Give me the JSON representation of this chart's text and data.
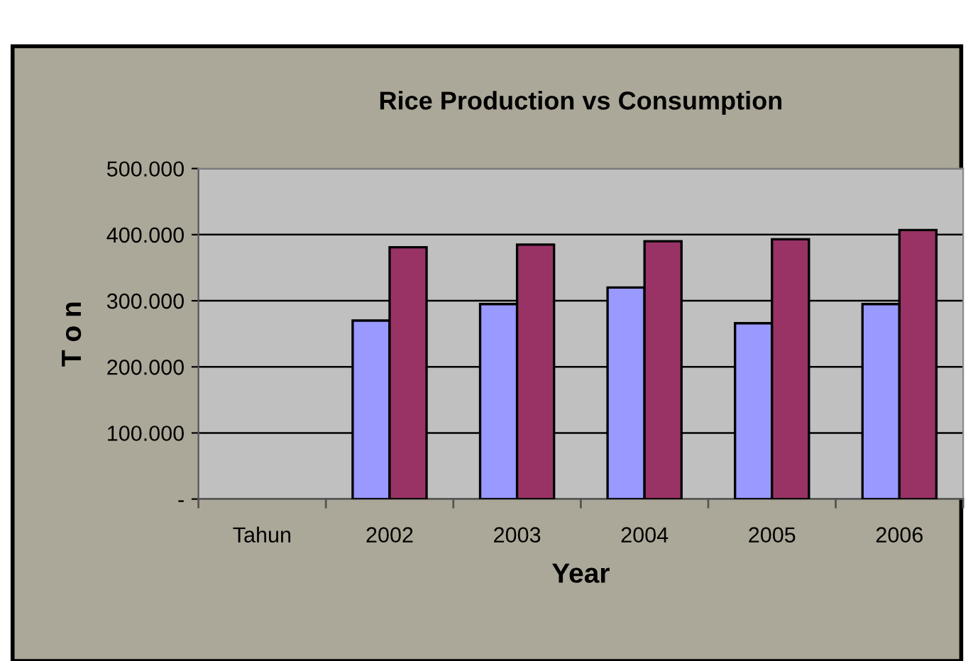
{
  "chart_data": {
    "type": "bar",
    "title": "Rice Production vs Consumption",
    "xlabel": "Year",
    "ylabel": "T o n",
    "categories": [
      "Tahun",
      "2002",
      "2003",
      "2004",
      "2005",
      "2006"
    ],
    "series": [
      {
        "color": "#9999ff",
        "values": [
          null,
          270000,
          295000,
          320000,
          266000,
          295000
        ]
      },
      {
        "color": "#993366",
        "values": [
          null,
          381000,
          385000,
          390000,
          393000,
          407000
        ]
      }
    ],
    "ylim": [
      0,
      500000
    ],
    "yticks": [
      {
        "value": 0,
        "label": "-"
      },
      {
        "value": 100000,
        "label": "100.000"
      },
      {
        "value": 200000,
        "label": "200.000"
      },
      {
        "value": 300000,
        "label": "300.000"
      },
      {
        "value": 400000,
        "label": "400.000"
      },
      {
        "value": 500000,
        "label": "500.000"
      }
    ],
    "grid": "y",
    "legend": false
  }
}
